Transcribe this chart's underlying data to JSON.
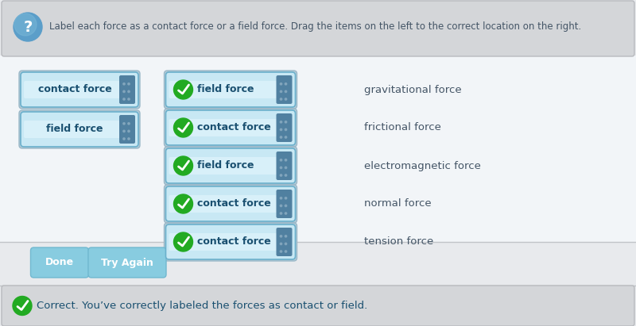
{
  "fig_w": 8.0,
  "fig_h": 4.11,
  "dpi": 100,
  "bg_color": "#e8eaed",
  "header_bg": "#d4d6d9",
  "header_text": "Label each force as a contact force or a field force. Drag the items on the left to the correct location on the right.",
  "question_icon_bg": "#5b9ec9",
  "left_labels": [
    "contact force",
    "field force"
  ],
  "right_entries": [
    {
      "label": "field force",
      "force": "gravitational force"
    },
    {
      "label": "contact force",
      "force": "frictional force"
    },
    {
      "label": "field force",
      "force": "electromagnetic force"
    },
    {
      "label": "contact force",
      "force": "normal force"
    },
    {
      "label": "contact force",
      "force": "tension force"
    }
  ],
  "btn_done_text": "Done",
  "btn_try_text": "Try Again",
  "footer_text": "Correct. You’ve correctly labeled the forces as contact or field.",
  "box_fill": "#c8e8f4",
  "box_fill2": "#d8f0fa",
  "box_border": "#6ab0cc",
  "box_outer_border": "#a0c8dc",
  "tab_color": "#5080a0",
  "tab_dots": "#4a7090",
  "check_green": "#22aa22",
  "text_dark": "#445566",
  "label_color": "#1a5070",
  "btn_fill": "#88cce0",
  "btn_border": "#70b8d0",
  "footer_bg": "#d4d6d9",
  "white_area_bg": "#f0f4f8"
}
